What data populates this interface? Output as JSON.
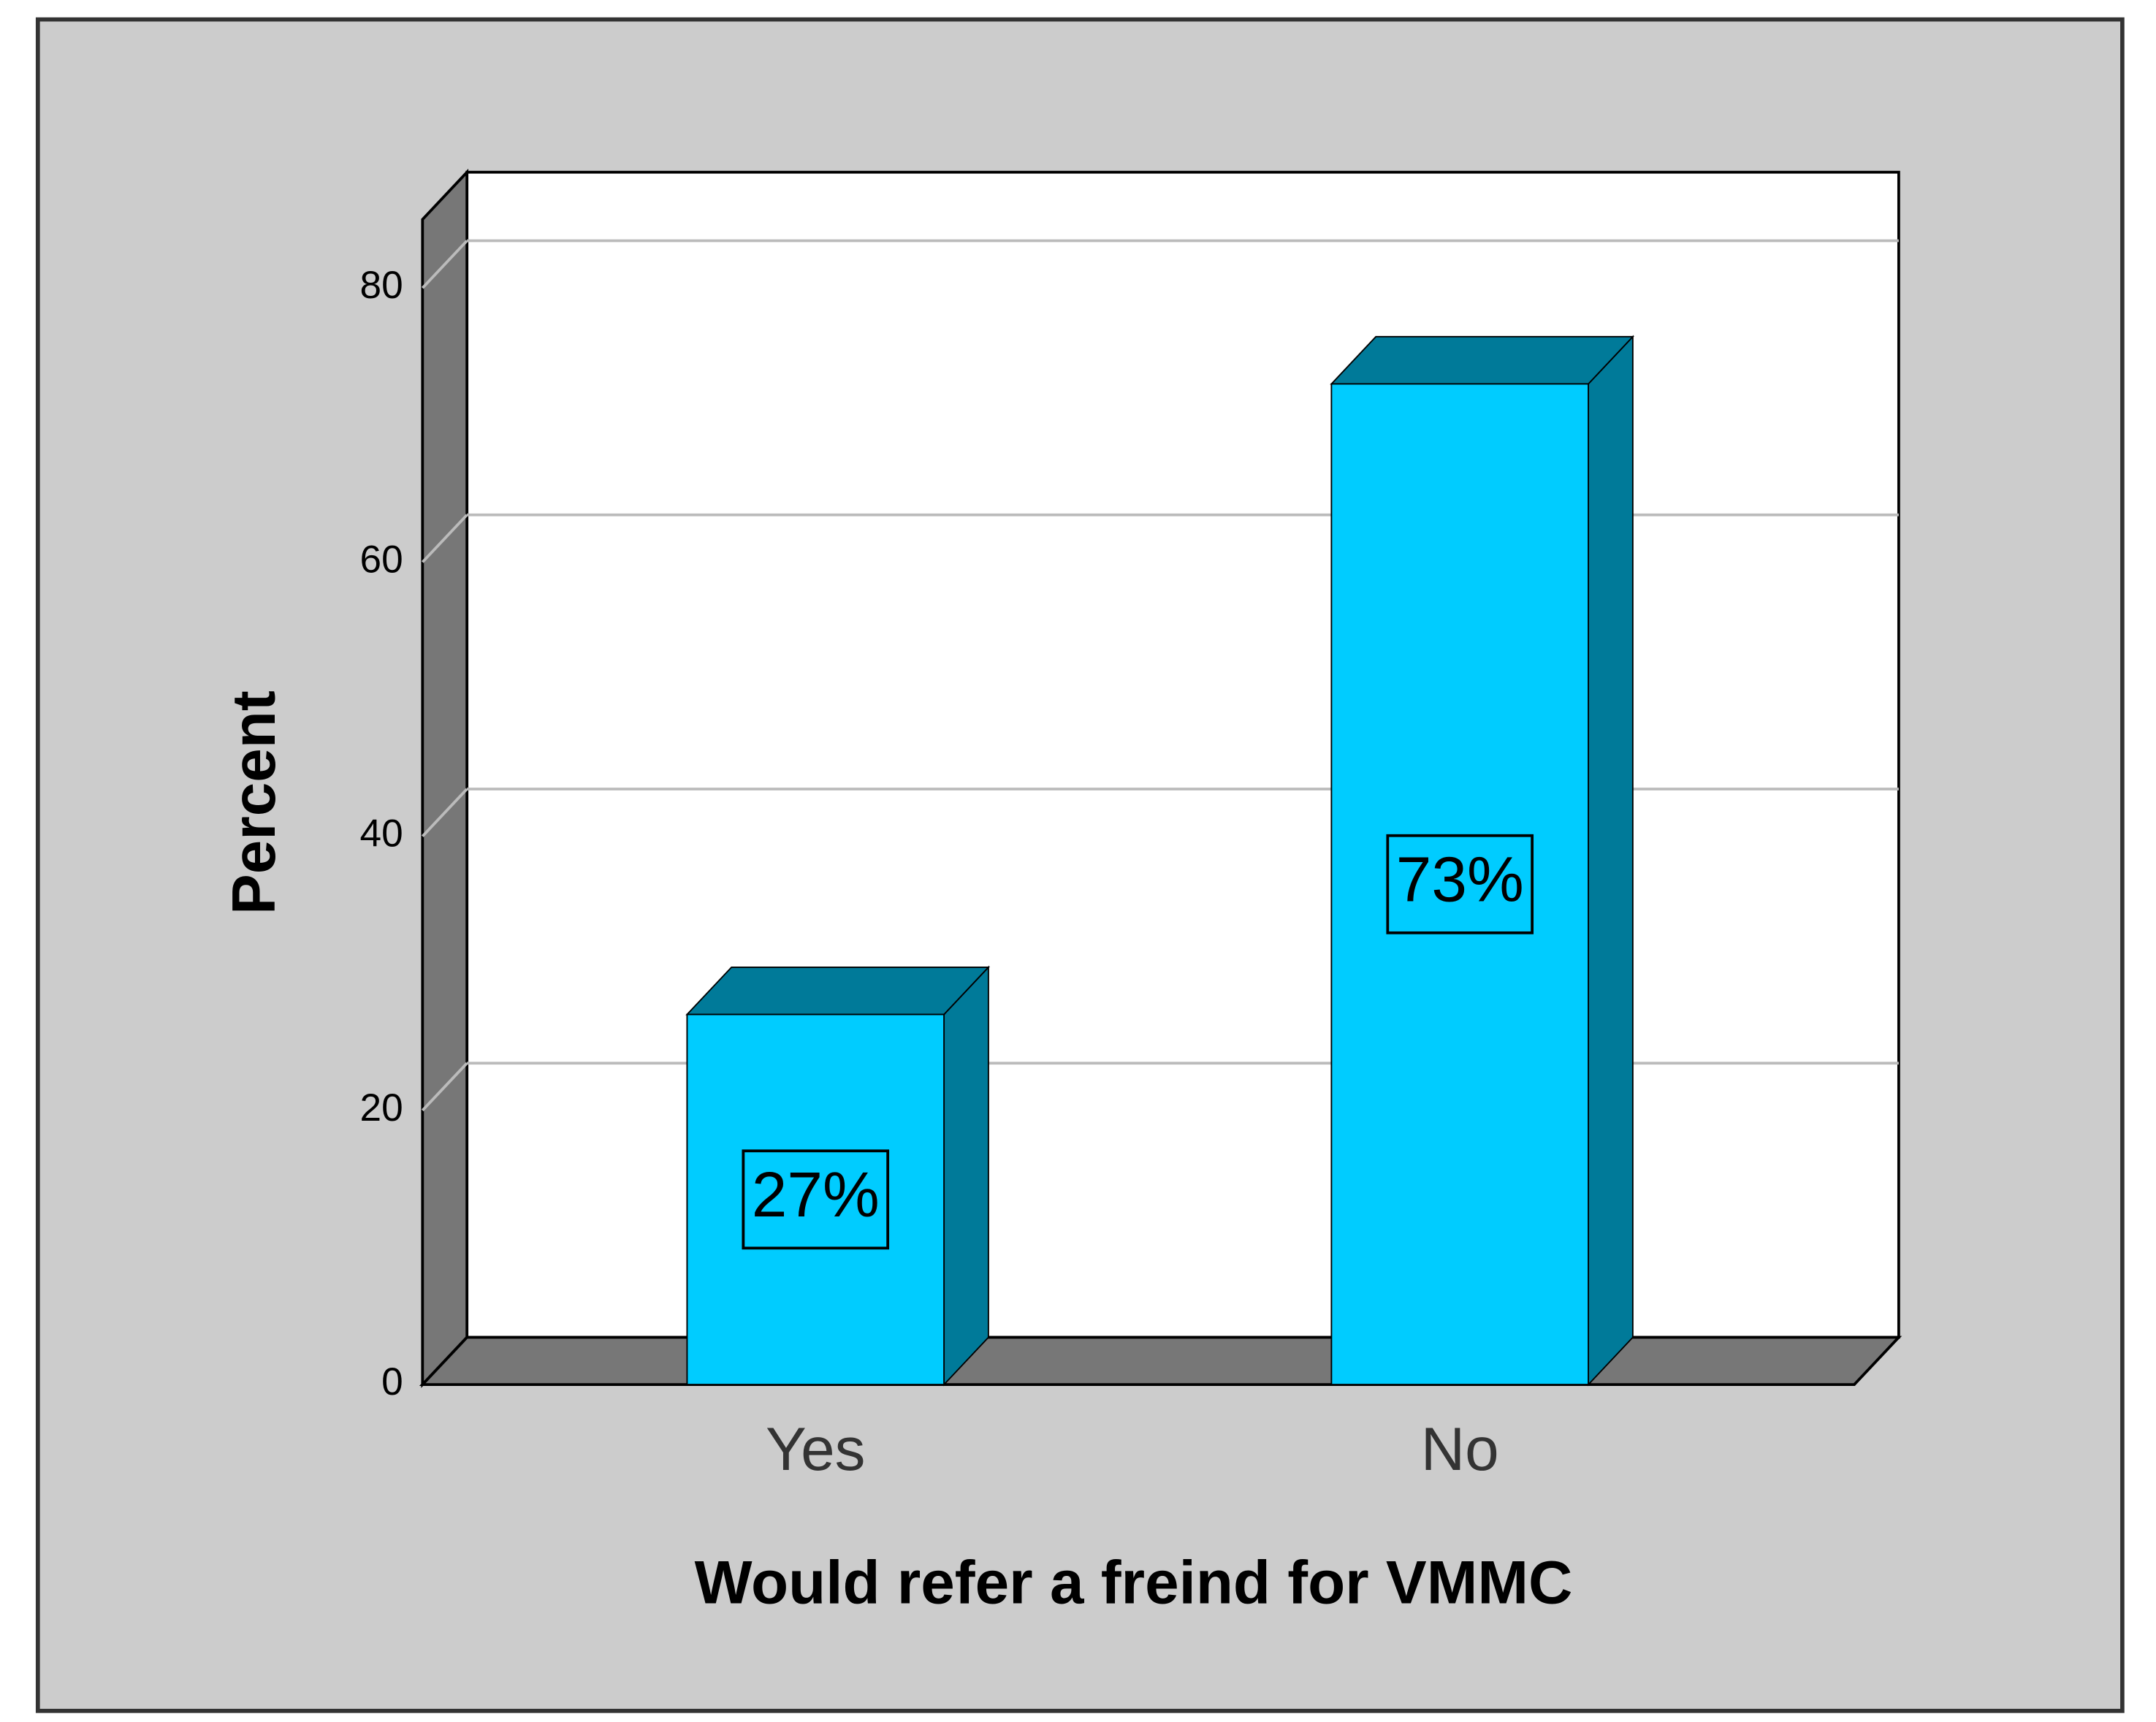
{
  "chart_data": {
    "type": "bar3d",
    "x_label": "Would refer a freind for VMMC",
    "y_label": "Percent",
    "categories": [
      "Yes",
      "No"
    ],
    "values": [
      27,
      73
    ],
    "value_labels": [
      "27%",
      "73%"
    ],
    "color": "#00ccff",
    "side_color": "#007a99",
    "ylim": [
      0,
      85
    ],
    "yticks": [
      0,
      20,
      40,
      60,
      80
    ],
    "grid": true
  }
}
